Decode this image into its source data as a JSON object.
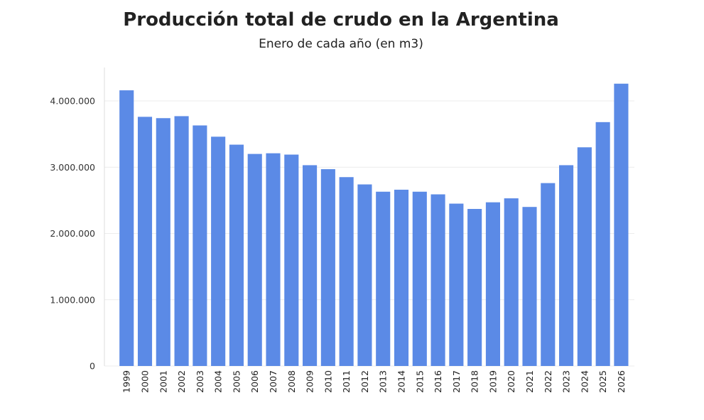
{
  "chart_data": {
    "type": "bar",
    "title": "Producción total de crudo en la Argentina",
    "subtitle": "Enero de cada año (en m3)",
    "xlabel": "",
    "ylabel": "",
    "categories": [
      "1999",
      "2000",
      "2001",
      "2002",
      "2003",
      "2004",
      "2005",
      "2006",
      "2007",
      "2008",
      "2009",
      "2010",
      "2011",
      "2012",
      "2013",
      "2014",
      "2015",
      "2016",
      "2017",
      "2018",
      "2019",
      "2020",
      "2021",
      "2022",
      "2023",
      "2024",
      "2025",
      "2026"
    ],
    "values": [
      4160000,
      3760000,
      3740000,
      3770000,
      3630000,
      3460000,
      3340000,
      3200000,
      3210000,
      3190000,
      3030000,
      2970000,
      2850000,
      2740000,
      2630000,
      2660000,
      2630000,
      2590000,
      2450000,
      2370000,
      2470000,
      2530000,
      2400000,
      2760000,
      3030000,
      3300000,
      3680000,
      4260000
    ],
    "ylim": [
      0,
      4500000
    ],
    "yticks": [
      0,
      1000000,
      2000000,
      3000000,
      4000000
    ],
    "ytick_labels": [
      "0",
      "1.000.000",
      "2.000.000",
      "3.000.000",
      "4.000.000"
    ],
    "grid": true,
    "bar_color": "#5b8ae6",
    "grid_color": "#ececec",
    "axis_color": "#dddddd"
  }
}
